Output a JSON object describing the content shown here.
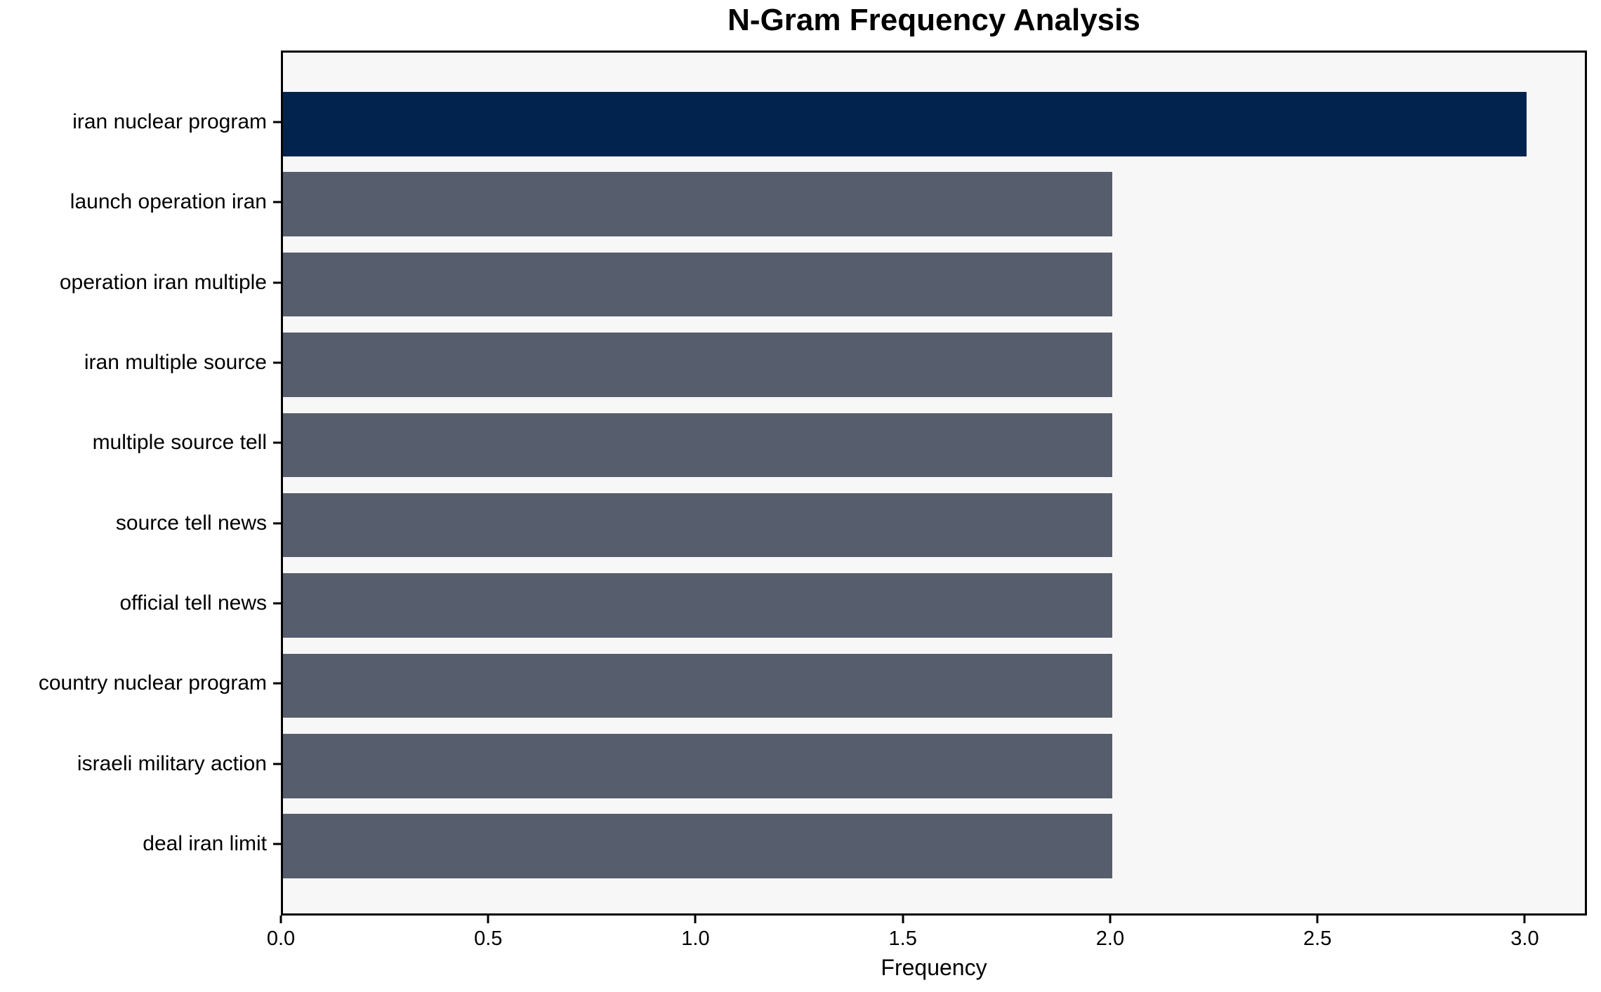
{
  "chart_data": {
    "type": "bar",
    "orientation": "horizontal",
    "title": "N-Gram Frequency Analysis",
    "xlabel": "Frequency",
    "ylabel": "",
    "categories": [
      "iran nuclear program",
      "launch operation iran",
      "operation iran multiple",
      "iran multiple source",
      "multiple source tell",
      "source tell news",
      "official tell news",
      "country nuclear program",
      "israeli military action",
      "deal iran limit"
    ],
    "values": [
      3,
      2,
      2,
      2,
      2,
      2,
      2,
      2,
      2,
      2
    ],
    "bar_colors": [
      "#02234d",
      "#565d6d",
      "#565d6d",
      "#565d6d",
      "#565d6d",
      "#565d6d",
      "#565d6d",
      "#565d6d",
      "#565d6d",
      "#565d6d"
    ],
    "xlim": [
      0,
      3.15
    ],
    "xticks": [
      0.0,
      0.5,
      1.0,
      1.5,
      2.0,
      2.5,
      3.0
    ],
    "xtick_labels": [
      "0.0",
      "0.5",
      "1.0",
      "1.5",
      "2.0",
      "2.5",
      "3.0"
    ],
    "grid": false,
    "legend": null,
    "bar_height_fraction": 0.8,
    "colors": {
      "highlight": "#02234d",
      "default": "#565d6d",
      "plot_background": "#f7f7f8",
      "figure_background": "#ffffff",
      "spine": "#000000",
      "text": "#000000"
    }
  }
}
